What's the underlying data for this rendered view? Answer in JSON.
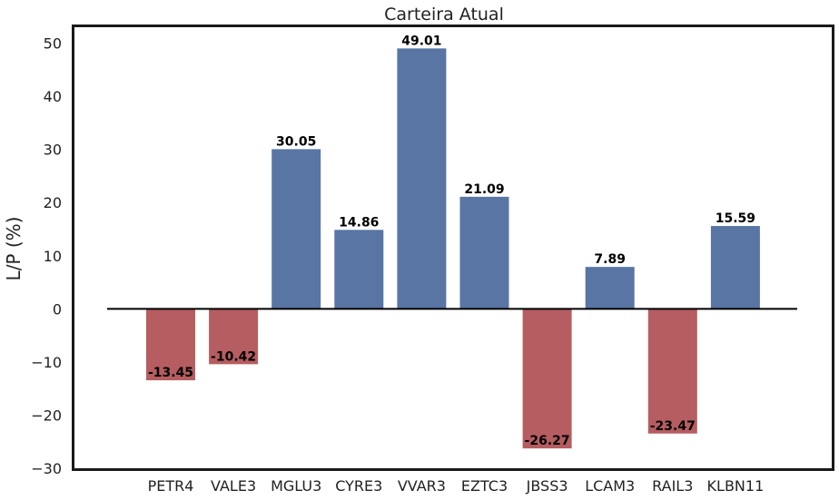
{
  "chart_data": {
    "type": "bar",
    "title": "Carteira Atual",
    "xlabel": "",
    "ylabel": "L/P (%)",
    "categories": [
      "PETR4",
      "VALE3",
      "MGLU3",
      "CYRE3",
      "VVAR3",
      "EZTC3",
      "JBSS3",
      "LCAM3",
      "RAIL3",
      "KLBN11"
    ],
    "values": [
      -13.45,
      -10.42,
      30.05,
      14.86,
      49.01,
      21.09,
      -26.27,
      7.89,
      -23.47,
      15.59
    ],
    "value_labels": [
      "-13.45",
      "-10.42",
      "30.05",
      "14.86",
      "49.01",
      "21.09",
      "-26.27",
      "7.89",
      "-23.47",
      "15.59"
    ],
    "ylim": [
      -30,
      53
    ],
    "yticks": [
      50,
      40,
      30,
      20,
      10,
      0,
      -10,
      -20,
      -30
    ],
    "ytick_labels": [
      "50",
      "40",
      "30",
      "20",
      "10",
      "0",
      "−10",
      "−20",
      "−30"
    ],
    "grid": false,
    "legend": "none",
    "zero_line": true,
    "colors": {
      "positive": "#5875a4",
      "negative": "#b55d60",
      "zero_line": "#000000",
      "frame": "#1a1a1a"
    }
  }
}
